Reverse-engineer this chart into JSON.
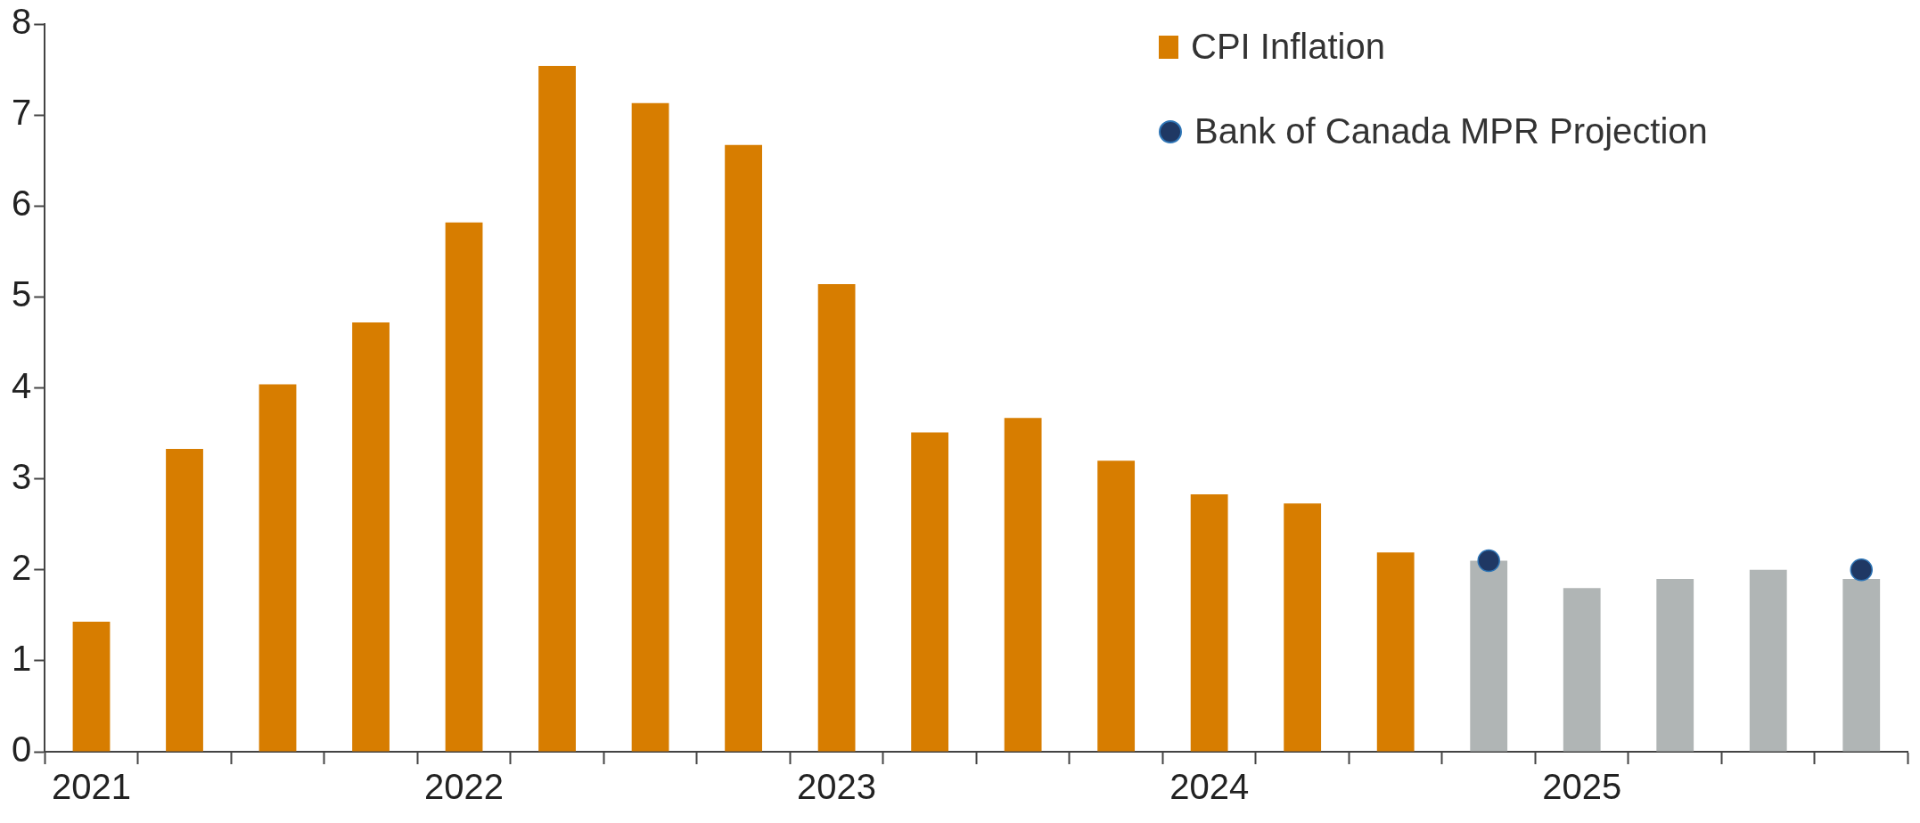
{
  "chart_data": {
    "type": "bar",
    "categories": [
      "2021",
      null,
      null,
      null,
      "2022",
      null,
      null,
      null,
      "2023",
      null,
      null,
      null,
      "2024",
      null,
      null,
      null,
      "2025",
      null,
      null,
      null
    ],
    "series": [
      {
        "name": "CPI Inflation",
        "color": "#d77d00",
        "colors": [
          "#d77d00",
          "#d77d00",
          "#d77d00",
          "#d77d00",
          "#d77d00",
          "#d77d00",
          "#d77d00",
          "#d77d00",
          "#d77d00",
          "#d77d00",
          "#d77d00",
          "#d77d00",
          "#d77d00",
          "#d77d00",
          "#d77d00",
          "#b0b5b5",
          "#b0b5b5",
          "#b0b5b5",
          "#b0b5b5",
          "#b0b5b5"
        ],
        "values": [
          1.43,
          3.33,
          4.04,
          4.72,
          5.82,
          7.54,
          7.13,
          6.67,
          5.14,
          3.51,
          3.67,
          3.2,
          2.83,
          2.73,
          2.19,
          2.1,
          1.8,
          1.9,
          2.0,
          1.9
        ]
      },
      {
        "name": "Bank of Canada MPR Projection",
        "type": "scatter",
        "color": "#1f3864",
        "marker": "circle",
        "values": [
          null,
          null,
          null,
          null,
          null,
          null,
          null,
          null,
          null,
          null,
          null,
          null,
          null,
          null,
          null,
          2.1,
          null,
          null,
          null,
          2.0
        ]
      }
    ],
    "ylim": [
      0,
      8
    ],
    "yticks": [
      0,
      1,
      2,
      3,
      4,
      5,
      6,
      7,
      8
    ],
    "grid": false,
    "legend": "top right"
  }
}
